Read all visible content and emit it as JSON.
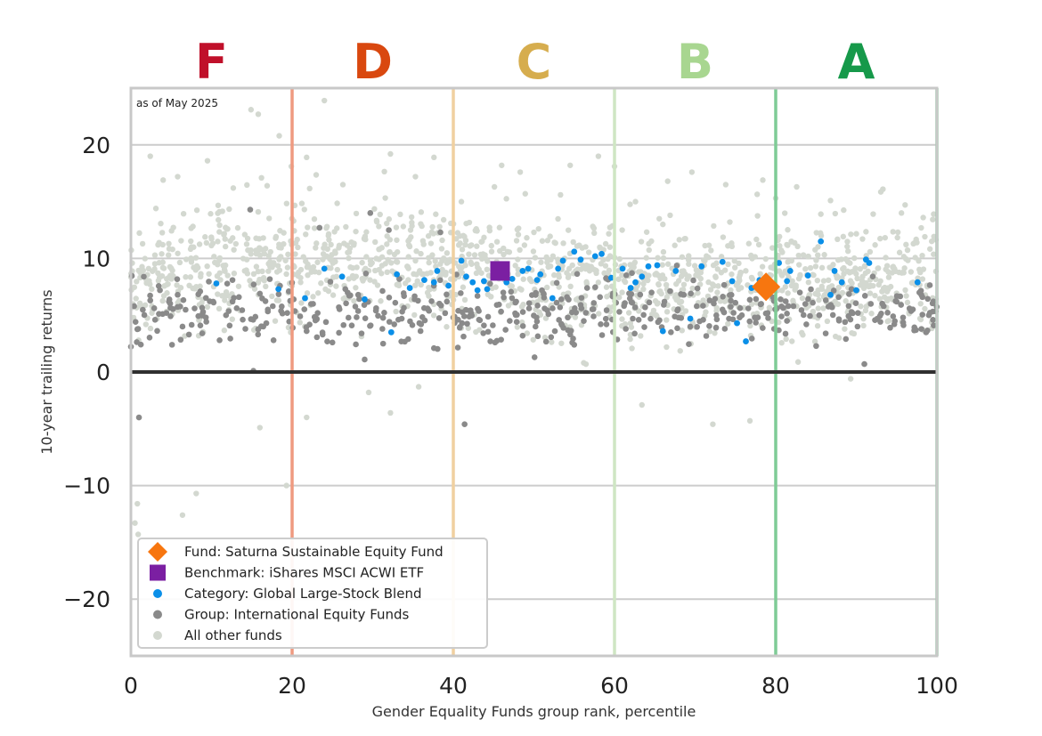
{
  "chart_data": {
    "type": "scatter",
    "title": "",
    "xlabel": "Gender Equality Funds group rank, percentile",
    "ylabel": "10-year trailing returns",
    "xlim": [
      0,
      100
    ],
    "ylim": [
      -25,
      25
    ],
    "x_ticks": [
      0,
      20,
      40,
      60,
      80,
      100
    ],
    "y_ticks": [
      -20,
      -10,
      0,
      10,
      20
    ],
    "y_tick_labels": [
      "−20",
      "−10",
      "0",
      "10",
      "20"
    ],
    "grid": "horizontal",
    "annotation": "as of May 2025",
    "zero_line": 0,
    "grade_bands": [
      {
        "label": "F",
        "x_center": 10,
        "color": "#c0102a",
        "boundary": 20,
        "boundary_color": "#ef9a80"
      },
      {
        "label": "D",
        "x_center": 30,
        "color": "#d9480f",
        "boundary": 40,
        "boundary_color": "#f0d0a0"
      },
      {
        "label": "C",
        "x_center": 50,
        "color": "#d6ad4e",
        "boundary": 60,
        "boundary_color": "#cfe6c4"
      },
      {
        "label": "B",
        "x_center": 70,
        "color": "#a8d690",
        "boundary": 80,
        "boundary_color": "#7fcb96"
      },
      {
        "label": "A",
        "x_center": 90,
        "color": "#16994a",
        "boundary": 100,
        "boundary_color": "#7fcb96"
      }
    ],
    "legend_position": "lower-left",
    "series": [
      {
        "name": "Fund: Saturna Sustainable Equity Fund",
        "marker": "diamond",
        "color": "#f7760f",
        "points": [
          [
            78.8,
            7.5
          ]
        ]
      },
      {
        "name": "Benchmark: iShares MSCI ACWI ETF",
        "marker": "square",
        "color": "#7b1fa2",
        "points": [
          [
            45.8,
            8.9
          ]
        ]
      },
      {
        "name": "Category: Global Large-Stock Blend",
        "marker": "dot",
        "color": "#0a8fe8",
        "points": [
          [
            10.6,
            7.8
          ],
          [
            18.3,
            7.3
          ],
          [
            21.6,
            6.5
          ],
          [
            24.0,
            9.1
          ],
          [
            26.2,
            8.4
          ],
          [
            29.0,
            6.4
          ],
          [
            32.3,
            3.5
          ],
          [
            33.0,
            8.6
          ],
          [
            34.6,
            7.4
          ],
          [
            36.4,
            8.1
          ],
          [
            37.6,
            7.9
          ],
          [
            38.0,
            8.9
          ],
          [
            39.4,
            7.6
          ],
          [
            41.0,
            9.8
          ],
          [
            41.6,
            8.4
          ],
          [
            42.4,
            7.9
          ],
          [
            43.0,
            7.2
          ],
          [
            43.8,
            8.0
          ],
          [
            44.2,
            7.3
          ],
          [
            45.0,
            8.4
          ],
          [
            46.6,
            7.9
          ],
          [
            47.3,
            8.2
          ],
          [
            48.6,
            8.9
          ],
          [
            49.3,
            9.1
          ],
          [
            50.4,
            8.1
          ],
          [
            50.8,
            8.6
          ],
          [
            52.3,
            6.5
          ],
          [
            53.0,
            9.1
          ],
          [
            53.6,
            9.8
          ],
          [
            55.0,
            10.6
          ],
          [
            55.8,
            9.9
          ],
          [
            57.6,
            10.2
          ],
          [
            58.4,
            10.4
          ],
          [
            59.6,
            8.3
          ],
          [
            61.0,
            9.1
          ],
          [
            62.0,
            7.4
          ],
          [
            62.6,
            7.9
          ],
          [
            63.4,
            8.4
          ],
          [
            64.2,
            9.3
          ],
          [
            65.3,
            9.4
          ],
          [
            66.0,
            3.6
          ],
          [
            67.6,
            8.9
          ],
          [
            69.4,
            4.7
          ],
          [
            70.8,
            9.3
          ],
          [
            73.4,
            9.7
          ],
          [
            74.6,
            8.0
          ],
          [
            75.2,
            4.3
          ],
          [
            76.3,
            2.7
          ],
          [
            77.0,
            7.4
          ],
          [
            78.0,
            8.1
          ],
          [
            80.4,
            9.6
          ],
          [
            81.4,
            8.0
          ],
          [
            81.8,
            8.9
          ],
          [
            84.0,
            8.5
          ],
          [
            85.6,
            11.5
          ],
          [
            86.8,
            6.8
          ],
          [
            87.3,
            8.9
          ],
          [
            88.2,
            7.9
          ],
          [
            90.0,
            7.2
          ],
          [
            91.2,
            9.9
          ],
          [
            91.6,
            9.6
          ],
          [
            97.6,
            7.9
          ]
        ]
      },
      {
        "name": "Group: International Equity Funds",
        "marker": "dot",
        "color": "#8a8a8a",
        "points": [
          [
            0.4,
            5.8
          ],
          [
            0.9,
            3.8
          ],
          [
            1.0,
            -4.0
          ],
          [
            1.6,
            8.4
          ],
          [
            2.4,
            6.3
          ],
          [
            3.0,
            4.6
          ],
          [
            3.6,
            7.2
          ],
          [
            4.4,
            5.2
          ],
          [
            5.1,
            2.4
          ],
          [
            5.8,
            6.8
          ],
          [
            6.4,
            4.0
          ],
          [
            7.2,
            3.3
          ],
          [
            7.9,
            5.6
          ],
          [
            8.6,
            7.1
          ],
          [
            9.3,
            4.8
          ],
          [
            10.2,
            6.2
          ],
          [
            11.0,
            2.8
          ],
          [
            11.8,
            5.0
          ],
          [
            12.6,
            8.1
          ],
          [
            13.4,
            6.6
          ],
          [
            14.2,
            3.8
          ],
          [
            14.8,
            14.3
          ],
          [
            15.2,
            0.1
          ],
          [
            16.0,
            6.9
          ],
          [
            16.8,
            4.3
          ],
          [
            17.6,
            5.8
          ],
          [
            18.5,
            7.6
          ],
          [
            19.4,
            5.2
          ],
          [
            20.2,
            6.4
          ],
          [
            21.0,
            4.9
          ],
          [
            21.8,
            3.6
          ],
          [
            22.6,
            6.0
          ],
          [
            23.4,
            12.7
          ],
          [
            24.2,
            4.4
          ],
          [
            25.0,
            2.6
          ],
          [
            25.8,
            5.7
          ],
          [
            26.6,
            7.3
          ],
          [
            27.4,
            4.1
          ],
          [
            28.2,
            6.8
          ],
          [
            29.0,
            1.1
          ],
          [
            29.7,
            14.0
          ],
          [
            30.4,
            5.4
          ],
          [
            31.2,
            3.8
          ],
          [
            32.0,
            12.5
          ],
          [
            32.8,
            6.1
          ],
          [
            33.6,
            4.7
          ],
          [
            34.4,
            2.9
          ],
          [
            35.2,
            6.4
          ],
          [
            36.0,
            4.2
          ],
          [
            36.8,
            5.6
          ],
          [
            37.6,
            2.1
          ],
          [
            38.4,
            12.3
          ],
          [
            39.2,
            6.2
          ],
          [
            40.0,
            4.8
          ],
          [
            40.8,
            3.9
          ],
          [
            41.4,
            -4.6
          ],
          [
            42.2,
            5.2
          ],
          [
            43.0,
            6.7
          ],
          [
            43.8,
            4.1
          ],
          [
            44.6,
            2.7
          ],
          [
            45.4,
            5.9
          ],
          [
            46.2,
            7.0
          ],
          [
            47.0,
            4.5
          ],
          [
            47.8,
            6.2
          ],
          [
            48.6,
            3.2
          ],
          [
            49.4,
            5.6
          ],
          [
            50.2,
            4.0
          ],
          [
            51.0,
            7.2
          ],
          [
            51.8,
            5.1
          ],
          [
            52.6,
            3.6
          ],
          [
            53.4,
            6.4
          ],
          [
            54.2,
            4.8
          ],
          [
            55.0,
            2.4
          ],
          [
            55.8,
            5.9
          ],
          [
            56.6,
            7.4
          ],
          [
            57.4,
            4.9
          ],
          [
            58.2,
            6.6
          ],
          [
            59.0,
            4.2
          ],
          [
            59.8,
            6.9
          ],
          [
            60.6,
            5.3
          ],
          [
            61.4,
            3.8
          ],
          [
            62.2,
            6.1
          ],
          [
            63.0,
            4.6
          ],
          [
            63.8,
            5.7
          ],
          [
            64.6,
            7.0
          ],
          [
            65.4,
            4.4
          ],
          [
            66.2,
            6.2
          ],
          [
            67.0,
            3.5
          ],
          [
            67.8,
            5.4
          ],
          [
            68.6,
            6.8
          ],
          [
            69.4,
            4.0
          ],
          [
            70.2,
            5.8
          ],
          [
            71.0,
            4.6
          ],
          [
            71.8,
            6.3
          ],
          [
            72.6,
            3.9
          ],
          [
            73.4,
            5.5
          ],
          [
            74.2,
            4.7
          ],
          [
            75.0,
            6.1
          ],
          [
            75.8,
            5.0
          ],
          [
            76.6,
            5.6
          ],
          [
            77.4,
            4.8
          ],
          [
            78.2,
            6.0
          ],
          [
            79.0,
            5.2
          ],
          [
            79.8,
            3.8
          ],
          [
            80.6,
            6.4
          ],
          [
            81.4,
            4.5
          ],
          [
            82.2,
            5.8
          ],
          [
            83.0,
            7.0
          ],
          [
            83.8,
            4.2
          ],
          [
            84.6,
            6.1
          ],
          [
            85.4,
            5.0
          ],
          [
            86.2,
            3.4
          ],
          [
            87.0,
            5.7
          ],
          [
            87.8,
            6.6
          ],
          [
            88.6,
            4.4
          ],
          [
            89.4,
            7.3
          ],
          [
            90.2,
            5.2
          ],
          [
            91.0,
            0.7
          ],
          [
            91.8,
            6.0
          ],
          [
            92.6,
            4.7
          ],
          [
            93.4,
            5.8
          ],
          [
            94.2,
            3.9
          ],
          [
            95.0,
            6.2
          ],
          [
            95.8,
            4.8
          ],
          [
            96.6,
            5.6
          ],
          [
            97.4,
            3.7
          ],
          [
            98.2,
            6.6
          ],
          [
            99.0,
            5.0
          ],
          [
            99.6,
            4.1
          ]
        ]
      },
      {
        "name": "All other funds",
        "marker": "dot",
        "color": "#d3d8d0",
        "points": [
          [
            0.5,
            -13.3
          ],
          [
            0.8,
            -11.6
          ],
          [
            0.9,
            -14.3
          ],
          [
            2.4,
            19.0
          ],
          [
            3.1,
            14.4
          ],
          [
            4.0,
            16.9
          ],
          [
            5.8,
            17.2
          ],
          [
            6.4,
            -12.6
          ],
          [
            8.1,
            -10.7
          ],
          [
            9.5,
            18.6
          ],
          [
            12.7,
            16.2
          ],
          [
            14.9,
            23.1
          ],
          [
            15.8,
            22.7
          ],
          [
            16.0,
            -4.9
          ],
          [
            16.2,
            17.1
          ],
          [
            16.9,
            16.4
          ],
          [
            18.4,
            20.8
          ],
          [
            19.3,
            -10.0
          ],
          [
            19.9,
            18.1
          ],
          [
            21.8,
            -4.0
          ],
          [
            21.8,
            18.9
          ],
          [
            24.0,
            23.9
          ],
          [
            24.5,
            12.0
          ],
          [
            26.3,
            16.5
          ],
          [
            29.5,
            -1.8
          ],
          [
            32.2,
            19.2
          ],
          [
            32.2,
            -3.6
          ],
          [
            35.3,
            17.2
          ],
          [
            35.7,
            -1.3
          ],
          [
            37.6,
            18.9
          ],
          [
            41.0,
            15.0
          ],
          [
            45.1,
            16.3
          ],
          [
            46.0,
            18.2
          ],
          [
            48.3,
            17.6
          ],
          [
            50.0,
            12.3
          ],
          [
            53.3,
            15.6
          ],
          [
            54.5,
            18.2
          ],
          [
            58.0,
            19.0
          ],
          [
            60.0,
            18.1
          ],
          [
            62.6,
            15.0
          ],
          [
            63.4,
            -2.9
          ],
          [
            66.0,
            13.0
          ],
          [
            66.6,
            16.8
          ],
          [
            66.9,
            13.8
          ],
          [
            69.6,
            17.6
          ],
          [
            72.2,
            -4.6
          ],
          [
            73.8,
            16.5
          ],
          [
            76.8,
            -4.3
          ],
          [
            78.4,
            16.9
          ],
          [
            80.0,
            15.3
          ],
          [
            82.6,
            16.3
          ],
          [
            85.6,
            13.9
          ],
          [
            86.8,
            15.1
          ],
          [
            89.3,
            -0.6
          ],
          [
            93.3,
            16.1
          ],
          [
            95.6,
            14.0
          ],
          [
            98.3,
            13.6
          ],
          [
            99.6,
            13.9
          ],
          [
            12.0,
            12.6
          ],
          [
            4.7,
            11.3
          ]
        ],
        "background_cloud": {
          "y_center": 8.6,
          "y_spread": 2.4,
          "count": 1400
        }
      }
    ]
  }
}
